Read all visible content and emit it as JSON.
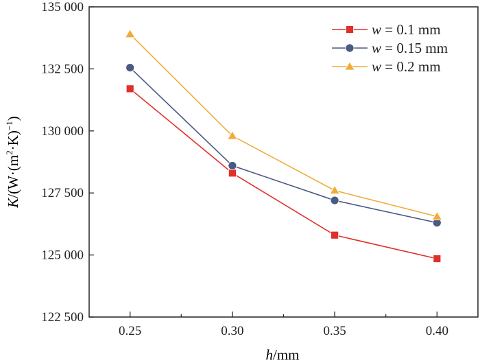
{
  "chart_data": {
    "type": "line",
    "title": "",
    "xlabel": "h/mm",
    "ylabel": "K/(W·(m²·K)⁻¹)",
    "xlabel_parts": {
      "var": "h",
      "unit": "/mm"
    },
    "ylabel_parts": {
      "var": "K",
      "pre": "/(W·(m",
      "sup1": "2",
      "mid": "·K)",
      "sup2": "−1",
      "post": ")"
    },
    "x": [
      0.25,
      0.3,
      0.35,
      0.4
    ],
    "xticks": [
      "0.25",
      "0.30",
      "0.35",
      "0.40"
    ],
    "yticks": [
      {
        "value": 122500,
        "label": "122 500"
      },
      {
        "value": 125000,
        "label": "125 000"
      },
      {
        "value": 127500,
        "label": "127 500"
      },
      {
        "value": 130000,
        "label": "130 000"
      },
      {
        "value": 132500,
        "label": "132 500"
      },
      {
        "value": 135000,
        "label": "135 000"
      }
    ],
    "xlim": [
      0.23,
      0.42
    ],
    "ylim": [
      122500,
      135000
    ],
    "grid": false,
    "legend_placement": "top-right",
    "series": [
      {
        "name": "w = 0.1 mm",
        "var": "w",
        "label": " = 0.1 mm",
        "marker": "square",
        "color": "#e0302a",
        "values": [
          131700,
          128300,
          125800,
          124850
        ]
      },
      {
        "name": "w = 0.15 mm",
        "var": "w",
        "label": " = 0.15 mm",
        "marker": "circle",
        "color": "#4a5a80",
        "values": [
          132550,
          128600,
          127200,
          126300
        ]
      },
      {
        "name": "w = 0.2 mm",
        "var": "w",
        "label": " = 0.2 mm",
        "marker": "triangle",
        "color": "#f0ac38",
        "values": [
          133900,
          129800,
          127600,
          126550
        ]
      }
    ]
  }
}
